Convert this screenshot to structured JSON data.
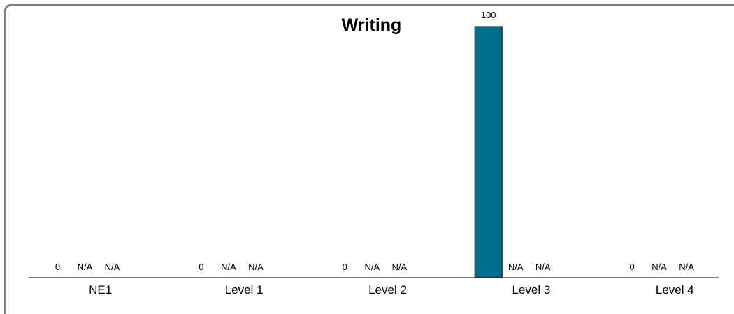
{
  "chart_data": {
    "type": "bar",
    "title": "Writing",
    "categories": [
      "NE1",
      "Level 1",
      "Level 2",
      "Level 3",
      "Level 4"
    ],
    "series": [
      {
        "values": [
          0,
          0,
          0,
          100,
          0
        ],
        "labels": [
          "0",
          "0",
          "0",
          "100",
          "0"
        ],
        "color": "#006e8a"
      },
      {
        "values": [
          null,
          null,
          null,
          null,
          null
        ],
        "labels": [
          "N/A",
          "N/A",
          "N/A",
          "N/A",
          "N/A"
        ],
        "color": "#006e8a"
      },
      {
        "values": [
          null,
          null,
          null,
          null,
          null
        ],
        "labels": [
          "N/A",
          "N/A",
          "N/A",
          "N/A",
          "N/A"
        ],
        "color": "#006e8a"
      }
    ],
    "ylim": [
      0,
      100
    ],
    "grid": false,
    "legend": "none"
  }
}
